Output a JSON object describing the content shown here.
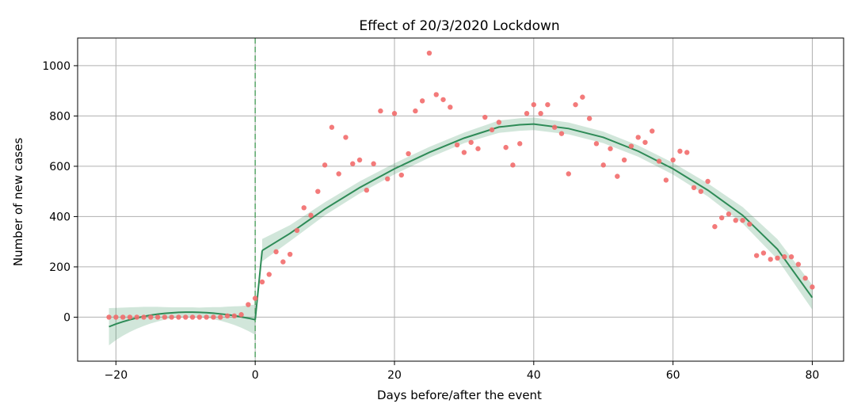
{
  "chart_data": {
    "type": "scatter",
    "title": "Effect of 20/3/2020 Lockdown",
    "xlabel": "Days before/after the event",
    "ylabel": "Number of new cases",
    "xlim": [
      -25.5,
      84.5
    ],
    "ylim": [
      -175,
      1110
    ],
    "xticks": [
      -20,
      0,
      20,
      40,
      60,
      80
    ],
    "yticks": [
      0,
      200,
      400,
      600,
      800,
      1000
    ],
    "grid": true,
    "event_line_x": 0,
    "colors": {
      "points": "#f26b6b",
      "fit": "#2e8b57",
      "band": "#2e8b57",
      "event_line": "#5aa86a",
      "grid": "#b0b0b0"
    },
    "series": [
      {
        "kind": "scatter",
        "x": [
          -21,
          -20,
          -19,
          -18,
          -17,
          -16,
          -15,
          -14,
          -13,
          -12,
          -11,
          -10,
          -9,
          -8,
          -7,
          -6,
          -5,
          -4,
          -3,
          -2,
          -1,
          0,
          1,
          2,
          3,
          4,
          5,
          6,
          7,
          8,
          9,
          10,
          11,
          12,
          13,
          14,
          15,
          16,
          17,
          18,
          19,
          20,
          21,
          22,
          23,
          24,
          25,
          26,
          27,
          28,
          29,
          30,
          31,
          32,
          33,
          34,
          35,
          36,
          37,
          38,
          39,
          40,
          41,
          42,
          43,
          44,
          45,
          46,
          47,
          48,
          49,
          50,
          51,
          52,
          53,
          54,
          55,
          56,
          57,
          58,
          59,
          60,
          61,
          62,
          63,
          64,
          65,
          66,
          67,
          68,
          69,
          70,
          71,
          72,
          73,
          74,
          75,
          76,
          77,
          78,
          79,
          80
        ],
        "y": [
          0,
          0,
          0,
          0,
          0,
          0,
          0,
          0,
          0,
          0,
          0,
          0,
          0,
          0,
          0,
          0,
          0,
          5,
          5,
          10,
          50,
          75,
          140,
          170,
          260,
          220,
          250,
          345,
          435,
          405,
          500,
          605,
          755,
          570,
          715,
          610,
          625,
          505,
          610,
          820,
          550,
          810,
          565,
          650,
          820,
          860,
          1050,
          885,
          865,
          835,
          685,
          655,
          695,
          670,
          795,
          745,
          775,
          675,
          605,
          690,
          810,
          845,
          810,
          845,
          755,
          730,
          570,
          845,
          875,
          790,
          690,
          605,
          670,
          560,
          625,
          680,
          715,
          695,
          740,
          620,
          545,
          625,
          660,
          655,
          515,
          500,
          540,
          360,
          395,
          410,
          385,
          385,
          370,
          245,
          255,
          230,
          235,
          240,
          240,
          210,
          155,
          120
        ]
      },
      {
        "kind": "fit-pre",
        "x": [
          -21,
          -20,
          -19,
          -18,
          -17,
          -16,
          -15,
          -14,
          -13,
          -12,
          -11,
          -10,
          -9,
          -8,
          -7,
          -6,
          -5,
          -4,
          -3,
          -2,
          -1,
          0
        ],
        "y": [
          -38,
          -27,
          -18,
          -10,
          -3,
          3,
          8,
          12,
          15,
          17,
          19,
          20,
          20,
          19,
          18,
          16,
          13,
          10,
          6,
          1,
          -4,
          -10
        ],
        "lower": [
          -112,
          -91,
          -74,
          -59,
          -46,
          -35,
          -25,
          -17,
          -10,
          -5,
          -1,
          1,
          1,
          0,
          -3,
          -8,
          -14,
          -22,
          -31,
          -42,
          -55,
          -70
        ],
        "upper": [
          36,
          37,
          38,
          39,
          40,
          41,
          41,
          41,
          40,
          39,
          39,
          39,
          39,
          38,
          39,
          40,
          40,
          42,
          43,
          44,
          47,
          50
        ]
      },
      {
        "kind": "fit-post",
        "x": [
          1,
          5,
          10,
          15,
          20,
          25,
          30,
          35,
          38,
          40,
          45,
          50,
          55,
          60,
          65,
          70,
          75,
          80
        ],
        "y": [
          265,
          333,
          430,
          515,
          590,
          655,
          712,
          756,
          765,
          768,
          750,
          715,
          660,
          590,
          505,
          405,
          270,
          78
        ],
        "lower": [
          222,
          302,
          405,
          492,
          568,
          634,
          692,
          733,
          741,
          744,
          727,
          692,
          638,
          567,
          480,
          373,
          230,
          30
        ],
        "upper": [
          311,
          366,
          457,
          540,
          612,
          677,
          734,
          782,
          791,
          794,
          774,
          738,
          683,
          614,
          532,
          438,
          310,
          128
        ]
      }
    ]
  }
}
